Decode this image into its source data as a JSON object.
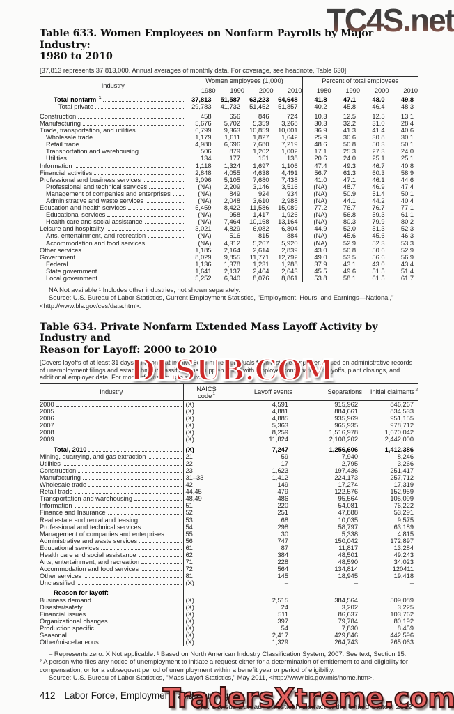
{
  "watermarks": {
    "top": "TC4S.net",
    "middle": "DLSUB.COM",
    "bottom": "TradersXtreme.com",
    "colors": {
      "middle_red": "#ce2a28",
      "bottom_pink": "#e2615f",
      "top_dark": "#3d3c3c"
    }
  },
  "table633": {
    "title_line1": "Table 633. Women Employees on Nonfarm Payrolls by Major Industry:",
    "title_line2": "1980 to 2010",
    "headnote": "[37,813 represents 37,813,000. Annual averages of monthly data. For coverage, see headnote, Table 630]",
    "industry_header": "Industry",
    "col_group1": "Women employees (1,000)",
    "col_group2": "Percent of total employees",
    "years": [
      "1980",
      "1990",
      "2000",
      "2010"
    ],
    "rows": [
      {
        "label": "Total nonfarm",
        "sup": "1",
        "indent": 2,
        "bold": true,
        "values": [
          "37,813",
          "51,587",
          "63,223",
          "64,648",
          "41.8",
          "47.1",
          "48.0",
          "49.8"
        ]
      },
      {
        "label": "Total private",
        "indent": 3,
        "values": [
          "29,783",
          "41,732",
          "51,452",
          "51,857",
          "40.2",
          "45.8",
          "46.4",
          "48.3"
        ]
      },
      {
        "label": "Construction",
        "gap": true,
        "values": [
          "458",
          "656",
          "846",
          "724",
          "10.3",
          "12.5",
          "12.5",
          "13.1"
        ]
      },
      {
        "label": "Manufacturing",
        "values": [
          "5,676",
          "5,702",
          "5,359",
          "3,268",
          "30.3",
          "32.2",
          "31.0",
          "28.4"
        ]
      },
      {
        "label": "Trade, transportation, and utilities",
        "values": [
          "6,799",
          "9,363",
          "10,859",
          "10,001",
          "36.9",
          "41.3",
          "41.4",
          "40.6"
        ]
      },
      {
        "label": "Wholesale trade",
        "indent": 1,
        "values": [
          "1,179",
          "1,611",
          "1,827",
          "1,642",
          "25.9",
          "30.6",
          "30.8",
          "30.1"
        ]
      },
      {
        "label": "Retail trade",
        "indent": 1,
        "values": [
          "4,980",
          "6,696",
          "7,680",
          "7,219",
          "48.6",
          "50.8",
          "50.3",
          "50.1"
        ]
      },
      {
        "label": "Transportation and warehousing",
        "indent": 1,
        "values": [
          "506",
          "879",
          "1,202",
          "1,002",
          "17.1",
          "25.3",
          "27.3",
          "24.0"
        ]
      },
      {
        "label": "Utilities",
        "indent": 1,
        "values": [
          "134",
          "177",
          "151",
          "138",
          "20.6",
          "24.0",
          "25.1",
          "25.1"
        ]
      },
      {
        "label": "Information",
        "values": [
          "1,118",
          "1,324",
          "1,697",
          "1,106",
          "47.4",
          "49.3",
          "46.7",
          "40.8"
        ]
      },
      {
        "label": "Financial activities",
        "values": [
          "2,848",
          "4,055",
          "4,638",
          "4,491",
          "56.7",
          "61.3",
          "60.3",
          "58.9"
        ]
      },
      {
        "label": "Professional and business services",
        "values": [
          "3,096",
          "5,105",
          "7,680",
          "7,438",
          "41.0",
          "47.1",
          "46.1",
          "44.6"
        ]
      },
      {
        "label": "Professional and technical services",
        "indent": 1,
        "values": [
          "(NA)",
          "2,209",
          "3,146",
          "3,516",
          "(NA)",
          "48.7",
          "46.9",
          "47.4"
        ]
      },
      {
        "label": "Management of companies and enterprises",
        "indent": 1,
        "values": [
          "(NA)",
          "849",
          "924",
          "934",
          "(NA)",
          "50.9",
          "51.4",
          "50.1"
        ]
      },
      {
        "label": "Administrative and waste services",
        "indent": 1,
        "values": [
          "(NA)",
          "2,048",
          "3,610",
          "2,988",
          "(NA)",
          "44.1",
          "44.2",
          "40.4"
        ]
      },
      {
        "label": "Education and health services",
        "values": [
          "5,459",
          "8,422",
          "11,586",
          "15,089",
          "77.2",
          "76.7",
          "76.7",
          "77.1"
        ]
      },
      {
        "label": "Educational services",
        "indent": 1,
        "values": [
          "(NA)",
          "958",
          "1,417",
          "1,926",
          "(NA)",
          "56.8",
          "59.3",
          "61.1"
        ]
      },
      {
        "label": "Health care and social assistance",
        "indent": 1,
        "values": [
          "(NA)",
          "7,464",
          "10,168",
          "13,164",
          "(NA)",
          "80.3",
          "79.9",
          "80.2"
        ]
      },
      {
        "label": "Leisure and hospitality",
        "values": [
          "3,021",
          "4,829",
          "6,082",
          "6,804",
          "44.9",
          "52.0",
          "51.3",
          "52.3"
        ]
      },
      {
        "label": "Arts, entertainment, and recreation",
        "indent": 1,
        "values": [
          "(NA)",
          "516",
          "815",
          "884",
          "(NA)",
          "45.6",
          "45.6",
          "46.3"
        ]
      },
      {
        "label": "Accommodation and food services",
        "indent": 1,
        "values": [
          "(NA)",
          "4,312",
          "5,267",
          "5,920",
          "(NA)",
          "52.9",
          "52.3",
          "53.3"
        ]
      },
      {
        "label": "Other services",
        "values": [
          "1,185",
          "2,164",
          "2,614",
          "2,839",
          "43.0",
          "50.8",
          "50.6",
          "52.9"
        ]
      },
      {
        "label": "Government",
        "values": [
          "8,029",
          "9,855",
          "11,771",
          "12,792",
          "49.0",
          "53.5",
          "56.6",
          "56.9"
        ]
      },
      {
        "label": "Federal",
        "indent": 1,
        "values": [
          "1,136",
          "1,378",
          "1,231",
          "1,288",
          "37.9",
          "43.1",
          "43.0",
          "43.4"
        ]
      },
      {
        "label": "State government",
        "indent": 1,
        "values": [
          "1,641",
          "2,137",
          "2,464",
          "2,643",
          "45.5",
          "49.6",
          "51.5",
          "51.4"
        ]
      },
      {
        "label": "Local government",
        "indent": 1,
        "values": [
          "5,252",
          "6,340",
          "8,076",
          "8,861",
          "53.8",
          "58.1",
          "61.5",
          "61.7"
        ]
      }
    ],
    "footnote": "NA Not available  ¹ Includes other industries, not shown separately.",
    "source": "Source: U.S. Bureau of Labor Statistics, Current Employment Statistics, \"Employment, Hours, and Earnings—National,\" <http://www.bls.gov/ces/data.htm>."
  },
  "table634": {
    "title_line1": "Table 634. Private Nonfarm Extended Mass Layoff Activity by Industry and",
    "title_line2": "Reason for Layoff: 2000 to 2010",
    "headnote": "[Covers layoffs of at least 31 days duration that involve 50 or more individuals from a single employer. Based on administrative records of unemployment filings and establishment classifications, supplemented with employer confirmation of layoffs, plant closings, and additional employer data. For more information, see source]",
    "industry_header": "Industry",
    "code_header_line1": "NAICS",
    "code_header_line2": "code",
    "code_header_sup": "1",
    "events_header": "Layoff events",
    "separations_header": "Separations",
    "claimants_header": "Initial claimants",
    "claimants_sup": "2",
    "rows": [
      {
        "label": "2000",
        "code": "(X)",
        "values": [
          "4,591",
          "915,962",
          "846,267"
        ]
      },
      {
        "label": "2005",
        "code": "(X)",
        "values": [
          "4,881",
          "884,661",
          "834,533"
        ]
      },
      {
        "label": "2006",
        "code": "(X)",
        "values": [
          "4,885",
          "935,969",
          "951,155"
        ]
      },
      {
        "label": "2007",
        "code": "(X)",
        "values": [
          "5,363",
          "965,935",
          "978,712"
        ]
      },
      {
        "label": "2008",
        "code": "(X)",
        "values": [
          "8,259",
          "1,516,978",
          "1,670,042"
        ]
      },
      {
        "label": "2009",
        "code": "(X)",
        "values": [
          "11,824",
          "2,108,202",
          "2,442,000"
        ]
      },
      {
        "label": "Total, 2010",
        "indent": 2,
        "bold": true,
        "gap": true,
        "code": "(X)",
        "values": [
          "7,247",
          "1,256,606",
          "1,412,386"
        ]
      },
      {
        "label": "Mining, quarrying, and gas extraction",
        "code": "21",
        "values": [
          "59",
          "7,940",
          "8,246"
        ]
      },
      {
        "label": "Utilities",
        "code": "22",
        "values": [
          "17",
          "2,795",
          "3,266"
        ]
      },
      {
        "label": "Construction",
        "code": "23",
        "values": [
          "1,623",
          "197,436",
          "251,417"
        ]
      },
      {
        "label": "Manufacturing",
        "code": "31–33",
        "values": [
          "1,412",
          "224,173",
          "257,712"
        ]
      },
      {
        "label": "Wholesale trade",
        "code": "42",
        "values": [
          "149",
          "17,274",
          "17,319"
        ]
      },
      {
        "label": "Retail trade",
        "code": "44,45",
        "values": [
          "479",
          "122,576",
          "152,959"
        ]
      },
      {
        "label": "Transportation and warehousing",
        "code": "48,49",
        "values": [
          "486",
          "95,564",
          "105,099"
        ]
      },
      {
        "label": "Information",
        "code": "51",
        "values": [
          "220",
          "54,081",
          "76,222"
        ]
      },
      {
        "label": "Finance and Insurance",
        "code": "52",
        "values": [
          "251",
          "47,888",
          "53,291"
        ]
      },
      {
        "label": "Real estate and rental and leasing",
        "code": "53",
        "values": [
          "68",
          "10,035",
          "9,575"
        ]
      },
      {
        "label": "Professional and technical services",
        "code": "54",
        "values": [
          "298",
          "58,797",
          "63,189"
        ]
      },
      {
        "label": "Management of companies and enterprises",
        "code": "55",
        "values": [
          "30",
          "5,338",
          "4,815"
        ]
      },
      {
        "label": "Administrative and waste services",
        "code": "56",
        "values": [
          "747",
          "150,042",
          "172,897"
        ]
      },
      {
        "label": "Educational services",
        "code": "61",
        "values": [
          "87",
          "11,817",
          "13,284"
        ]
      },
      {
        "label": "Health care and social assistance",
        "code": "62",
        "values": [
          "384",
          "48,501",
          "49,243"
        ]
      },
      {
        "label": "Arts, entertainment, and recreation",
        "code": "71",
        "values": [
          "228",
          "48,590",
          "34,023"
        ]
      },
      {
        "label": "Accommodation and food services",
        "code": "72",
        "values": [
          "564",
          "134,814",
          "120411"
        ]
      },
      {
        "label": "Other services",
        "code": "81",
        "values": [
          "145",
          "18,945",
          "19,418"
        ]
      },
      {
        "label": "Unclassified",
        "code": "(X)",
        "values": [
          "–",
          "–",
          "–"
        ]
      },
      {
        "label": "Reason for layoff:",
        "indent": 2,
        "bold": true,
        "gap": true,
        "nodots": true,
        "code": "",
        "values": [
          "",
          "",
          ""
        ]
      },
      {
        "label": "Business demand",
        "code": "(X)",
        "values": [
          "2,515",
          "384,564",
          "509,089"
        ]
      },
      {
        "label": "Disaster/safety",
        "code": "(X)",
        "values": [
          "24",
          "3,202",
          "3,225"
        ]
      },
      {
        "label": "Financial issues",
        "code": "(X)",
        "values": [
          "511",
          "86,637",
          "103,762"
        ]
      },
      {
        "label": "Organizational changes",
        "code": "(X)",
        "values": [
          "397",
          "79,784",
          "80,192"
        ]
      },
      {
        "label": "Production specific",
        "code": "(X)",
        "values": [
          "54",
          "7,830",
          "8,459"
        ]
      },
      {
        "label": "Seasonal",
        "code": "(X)",
        "values": [
          "2,417",
          "429,846",
          "442,596"
        ]
      },
      {
        "label": "Other/miscellaneous",
        "code": "(X)",
        "values": [
          "1,329",
          "264,743",
          "265,063"
        ]
      }
    ],
    "footnote1": "– Represents zero. X Not applicable. ¹ Based on North American Industry Classification System, 2007. See text, Section 15.",
    "footnote2": "² A person who files any notice of unemployment to initiate a request either for a determination of entitlement to and eligibility for compensation, or for a subsequent period of unemployment within a benefit year or period of eligibility.",
    "source": "Source: U.S. Bureau of Labor Statistics, \"Mass Layoff Statistics,\" May 2011, <http://www.bls.gov/mls/home.htm>."
  },
  "footer": {
    "page_number": "412",
    "section_title": "Labor Force, Employment, and Earnings",
    "census_line": "U.S. Census Bureau, Statistical Abstract of the United States: 2012"
  }
}
